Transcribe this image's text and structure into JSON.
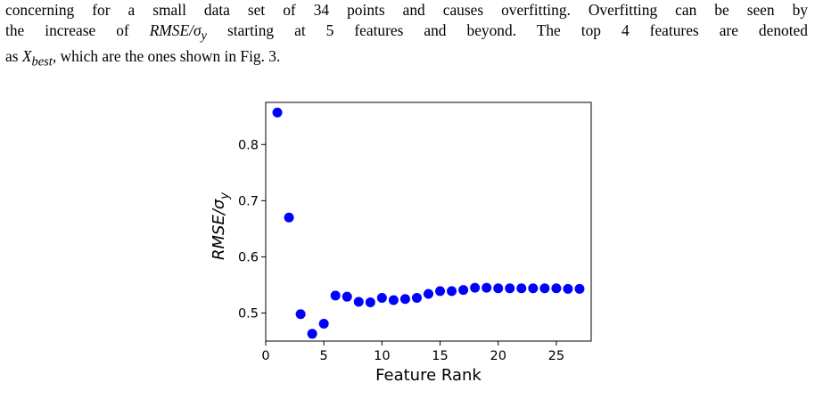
{
  "paragraph": {
    "line1": "concerning for a small data set of 34 points and causes overfitting. Overfitting can be seen by",
    "line2_pre": "the increase of ",
    "line2_math": "RMSE/σ",
    "line2_math_sub": "y",
    "line2_post": " starting at 5 features and beyond. The top 4 features are denoted",
    "line3_pre": "as ",
    "line3_math": "X",
    "line3_math_sub": "best",
    "line3_post": ", which are the ones shown in Fig. 3."
  },
  "chart_data": {
    "type": "scatter",
    "title": "",
    "xlabel": "Feature Rank",
    "ylabel_main": "RMSE/σ",
    "ylabel_sub": "y",
    "xlim": [
      0,
      28
    ],
    "ylim": [
      0.45,
      0.875
    ],
    "xticks": [
      0,
      5,
      10,
      15,
      20,
      25
    ],
    "yticks": [
      0.5,
      0.6,
      0.7,
      0.8
    ],
    "ytick_labels": [
      "0.5",
      "0.6",
      "0.7",
      "0.8"
    ],
    "marker_color": "#0000ff",
    "grid": false,
    "series": [
      {
        "x": [
          1,
          2,
          3,
          4,
          5,
          6,
          7,
          8,
          9,
          10,
          11,
          12,
          13,
          14,
          15,
          16,
          17,
          18,
          19,
          20,
          21,
          22,
          23,
          24,
          25,
          26,
          27
        ],
        "y": [
          0.857,
          0.67,
          0.498,
          0.463,
          0.481,
          0.531,
          0.529,
          0.52,
          0.519,
          0.527,
          0.523,
          0.525,
          0.527,
          0.534,
          0.539,
          0.539,
          0.541,
          0.545,
          0.545,
          0.544,
          0.544,
          0.544,
          0.544,
          0.544,
          0.544,
          0.543,
          0.543
        ]
      }
    ]
  },
  "caption": {
    "text": ""
  }
}
